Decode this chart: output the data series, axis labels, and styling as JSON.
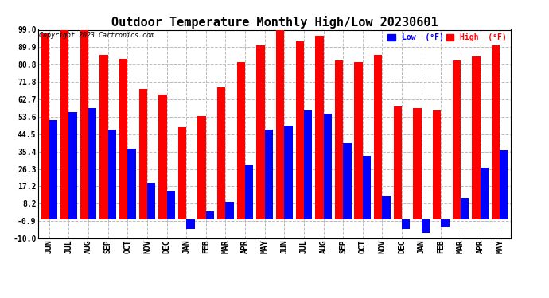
{
  "title": "Outdoor Temperature Monthly High/Low 20230601",
  "copyright": "Copyright 2023 Cartronics.com",
  "legend_low": "Low  (°F)",
  "legend_high": "High  (°F)",
  "months": [
    "JUN",
    "JUL",
    "AUG",
    "SEP",
    "OCT",
    "NOV",
    "DEC",
    "JAN",
    "FEB",
    "MAR",
    "APR",
    "MAY",
    "JUN",
    "JUL",
    "AUG",
    "SEP",
    "OCT",
    "NOV",
    "DEC",
    "JAN",
    "FEB",
    "MAR",
    "APR",
    "MAY"
  ],
  "high_values": [
    97,
    99,
    99,
    86,
    84,
    68,
    65,
    48,
    54,
    69,
    82,
    91,
    100,
    93,
    96,
    83,
    82,
    86,
    59,
    58,
    57,
    83,
    85,
    91
  ],
  "low_values": [
    52,
    56,
    58,
    47,
    37,
    19,
    15,
    -5,
    4,
    9,
    28,
    47,
    49,
    57,
    55,
    40,
    33,
    12,
    -5,
    -7,
    -4,
    11,
    27,
    36
  ],
  "ylim_min": -10.0,
  "ylim_max": 99.0,
  "yticks": [
    -10.0,
    -0.9,
    8.2,
    17.2,
    26.3,
    35.4,
    44.5,
    53.6,
    62.7,
    71.8,
    80.8,
    89.9,
    99.0
  ],
  "high_color": "#ff0000",
  "low_color": "#0000ff",
  "background_color": "#ffffff",
  "grid_color": "#bbbbbb",
  "title_fontsize": 11,
  "axis_fontsize": 7,
  "bar_width": 0.42
}
